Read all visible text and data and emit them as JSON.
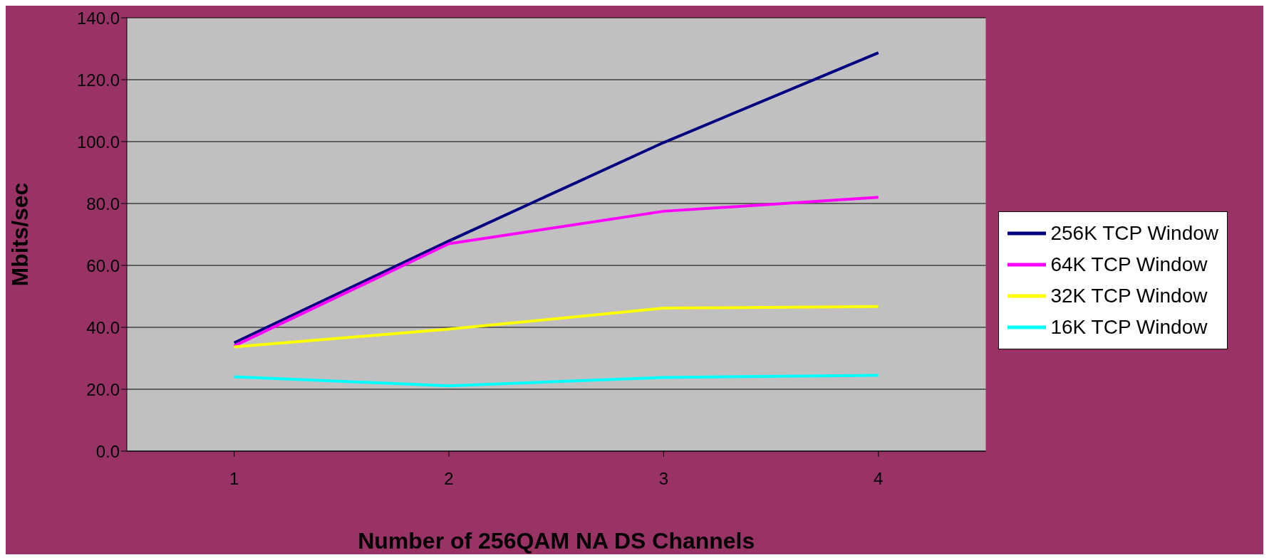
{
  "chart_data": {
    "type": "line",
    "xlabel": "Number of 256QAM NA DS Channels",
    "ylabel": "Mbits/sec",
    "categories": [
      "1",
      "2",
      "3",
      "4"
    ],
    "series": [
      {
        "name": "256K TCP Window",
        "color": "#000080",
        "values": [
          35.0,
          67.9,
          99.7,
          128.7
        ]
      },
      {
        "name": "64K TCP Window",
        "color": "#ff00ff",
        "values": [
          34.0,
          67.0,
          77.5,
          82.0
        ]
      },
      {
        "name": "32K TCP Window",
        "color": "#ffff00",
        "values": [
          33.7,
          39.4,
          46.2,
          46.7
        ]
      },
      {
        "name": "16K TCP Window",
        "color": "#00ffff",
        "values": [
          24.0,
          21.1,
          23.8,
          24.5
        ]
      }
    ],
    "ylim": [
      0,
      140
    ],
    "yticks": [
      {
        "value": 0,
        "label": "0.0"
      },
      {
        "value": 20,
        "label": "20.0"
      },
      {
        "value": 40,
        "label": "40.0"
      },
      {
        "value": 60,
        "label": "60.0"
      },
      {
        "value": 80,
        "label": "80.0"
      },
      {
        "value": 100,
        "label": "100.0"
      },
      {
        "value": 120,
        "label": "120.0"
      },
      {
        "value": 140,
        "label": "140.0"
      }
    ],
    "grid": "y",
    "legend": "right",
    "marker": "none",
    "line_style": "solid"
  }
}
